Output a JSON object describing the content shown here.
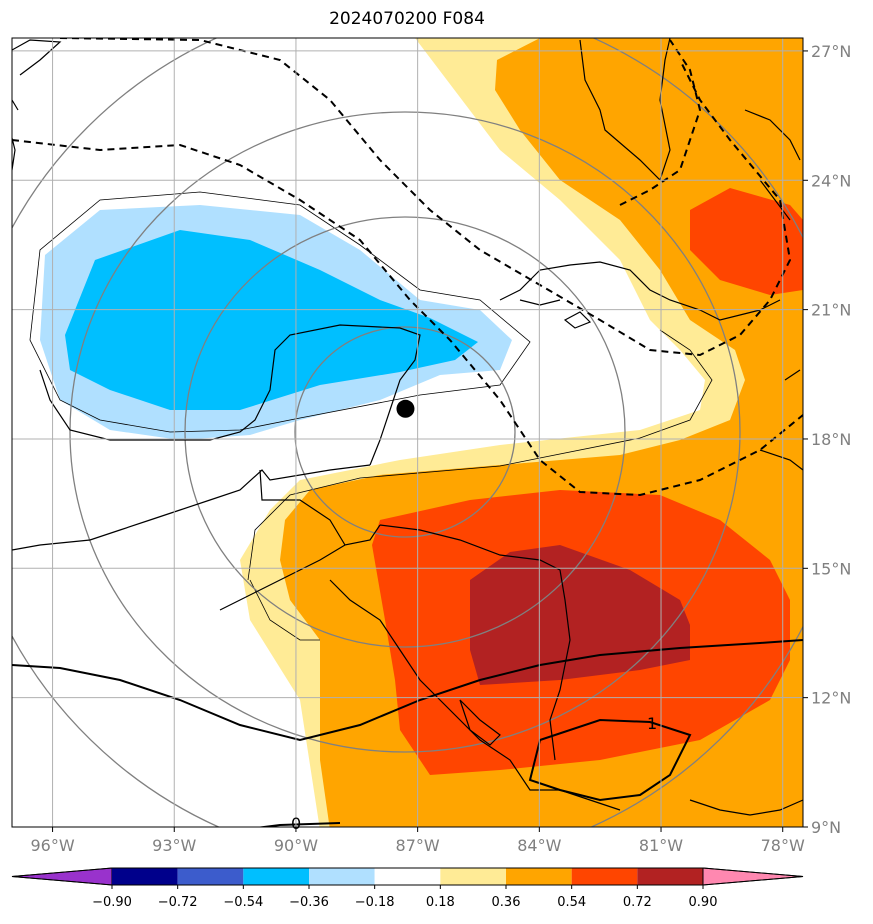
{
  "chart_data": {
    "type": "filled-contour-map",
    "title": "2024070200 F084",
    "lon_range": [
      -97,
      -77.5
    ],
    "lat_range": [
      9,
      27.3
    ],
    "lon_ticks": [
      "96°W",
      "93°W",
      "90°W",
      "87°W",
      "84°W",
      "81°W",
      "78°W"
    ],
    "lat_ticks": [
      "27°N",
      "24°N",
      "21°N",
      "18°N",
      "15°N",
      "12°N",
      "9°N"
    ],
    "grid": true,
    "contour_levels": [
      -0.9,
      -0.72,
      -0.54,
      -0.36,
      -0.18,
      0.18,
      0.36,
      0.54,
      0.72,
      0.9
    ],
    "colorbar_labels": [
      "−0.90",
      "−0.72",
      "−0.54",
      "−0.36",
      "−0.18",
      "0.18",
      "0.36",
      "0.54",
      "0.72",
      "0.90"
    ],
    "colorbar_colors": [
      "#9932cc",
      "#00008b",
      "#3c5ccc",
      "#00bfff",
      "#b0e0ff",
      "#ffffff",
      "#ffeb96",
      "#ffa500",
      "#ff4500",
      "#b22222",
      "#ff88b0"
    ],
    "line_contour_labels": [
      "1",
      "0"
    ],
    "storm_center": {
      "lon": -87.3,
      "lat": 18.7
    }
  }
}
